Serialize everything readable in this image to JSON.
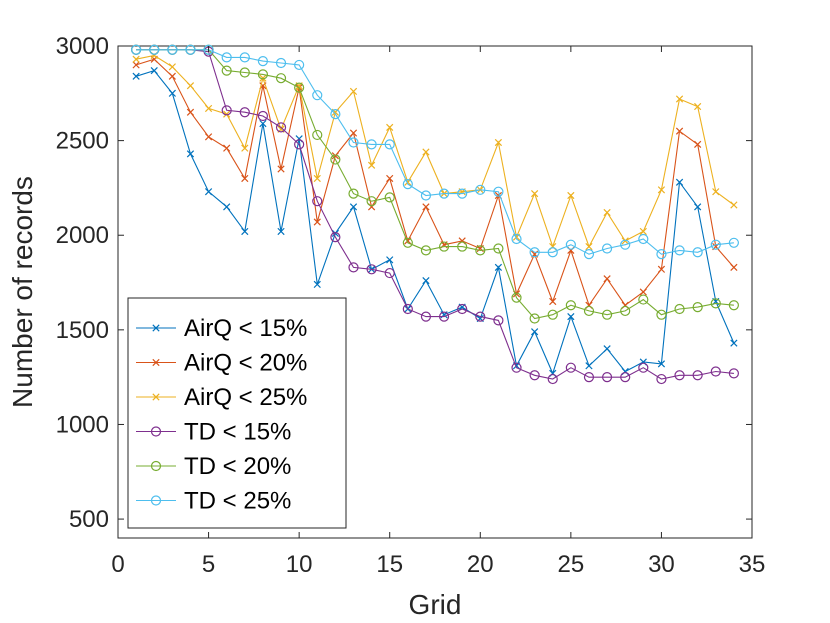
{
  "chart_data": {
    "type": "line",
    "xlabel": "Grid",
    "ylabel": "Number of records",
    "xlim": [
      0,
      35
    ],
    "ylim": [
      400,
      3000
    ],
    "xticks": [
      "0",
      "5",
      "10",
      "15",
      "20",
      "25",
      "30",
      "35"
    ],
    "yticks": [
      "500",
      "1000",
      "1500",
      "2000",
      "2500",
      "3000"
    ],
    "legend_position": "bottom-left",
    "grid": false,
    "x": [
      1,
      2,
      3,
      4,
      5,
      6,
      7,
      8,
      9,
      10,
      11,
      12,
      13,
      14,
      15,
      16,
      17,
      18,
      19,
      20,
      21,
      22,
      23,
      24,
      25,
      26,
      27,
      28,
      29,
      30,
      31,
      32,
      33,
      34
    ],
    "series": [
      {
        "name": "AirQ < 15%",
        "color": "#0072BD",
        "marker": "x",
        "values": [
          2840,
          2870,
          2750,
          2430,
          2230,
          2150,
          2020,
          2590,
          2020,
          2510,
          1740,
          2010,
          2150,
          1820,
          1870,
          1610,
          1760,
          1580,
          1620,
          1560,
          1830,
          1310,
          1490,
          1270,
          1570,
          1310,
          1400,
          1280,
          1330,
          1320,
          2280,
          2150,
          1650,
          1430
        ]
      },
      {
        "name": "AirQ < 20%",
        "color": "#D95319",
        "marker": "x",
        "values": [
          2900,
          2930,
          2840,
          2650,
          2520,
          2460,
          2300,
          2790,
          2350,
          2780,
          2070,
          2420,
          2540,
          2150,
          2300,
          1970,
          2150,
          1950,
          1970,
          1930,
          2210,
          1690,
          1900,
          1650,
          1920,
          1630,
          1770,
          1630,
          1700,
          1820,
          2550,
          2480,
          1940,
          1830
        ]
      },
      {
        "name": "AirQ < 25%",
        "color": "#EDB120",
        "marker": "x",
        "values": [
          2930,
          2950,
          2890,
          2790,
          2670,
          2640,
          2460,
          2830,
          2560,
          2790,
          2300,
          2650,
          2760,
          2370,
          2570,
          2280,
          2440,
          2220,
          2230,
          2240,
          2490,
          1990,
          2220,
          1940,
          2210,
          1940,
          2120,
          1970,
          2020,
          2240,
          2720,
          2680,
          2230,
          2160
        ]
      },
      {
        "name": "TD < 15%",
        "color": "#7E2F8E",
        "marker": "o",
        "values": [
          2980,
          2980,
          2980,
          2980,
          2970,
          2660,
          2650,
          2630,
          2570,
          2480,
          2180,
          1990,
          1830,
          1820,
          1800,
          1610,
          1570,
          1570,
          1610,
          1570,
          1550,
          1300,
          1260,
          1240,
          1300,
          1250,
          1250,
          1250,
          1300,
          1240,
          1260,
          1260,
          1280,
          1270
        ]
      },
      {
        "name": "TD < 20%",
        "color": "#77AC30",
        "marker": "o",
        "values": [
          2980,
          2980,
          2980,
          2980,
          2980,
          2870,
          2860,
          2850,
          2830,
          2780,
          2530,
          2400,
          2220,
          2180,
          2200,
          1960,
          1920,
          1940,
          1940,
          1920,
          1930,
          1670,
          1560,
          1580,
          1630,
          1600,
          1580,
          1600,
          1660,
          1580,
          1610,
          1620,
          1640,
          1630
        ]
      },
      {
        "name": "TD < 25%",
        "color": "#4DBEEE",
        "marker": "o",
        "values": [
          2980,
          2980,
          2980,
          2980,
          2980,
          2940,
          2940,
          2920,
          2910,
          2900,
          2740,
          2640,
          2490,
          2480,
          2480,
          2270,
          2210,
          2220,
          2220,
          2240,
          2230,
          1980,
          1910,
          1910,
          1950,
          1900,
          1930,
          1950,
          1980,
          1900,
          1920,
          1910,
          1950,
          1960
        ]
      }
    ]
  }
}
